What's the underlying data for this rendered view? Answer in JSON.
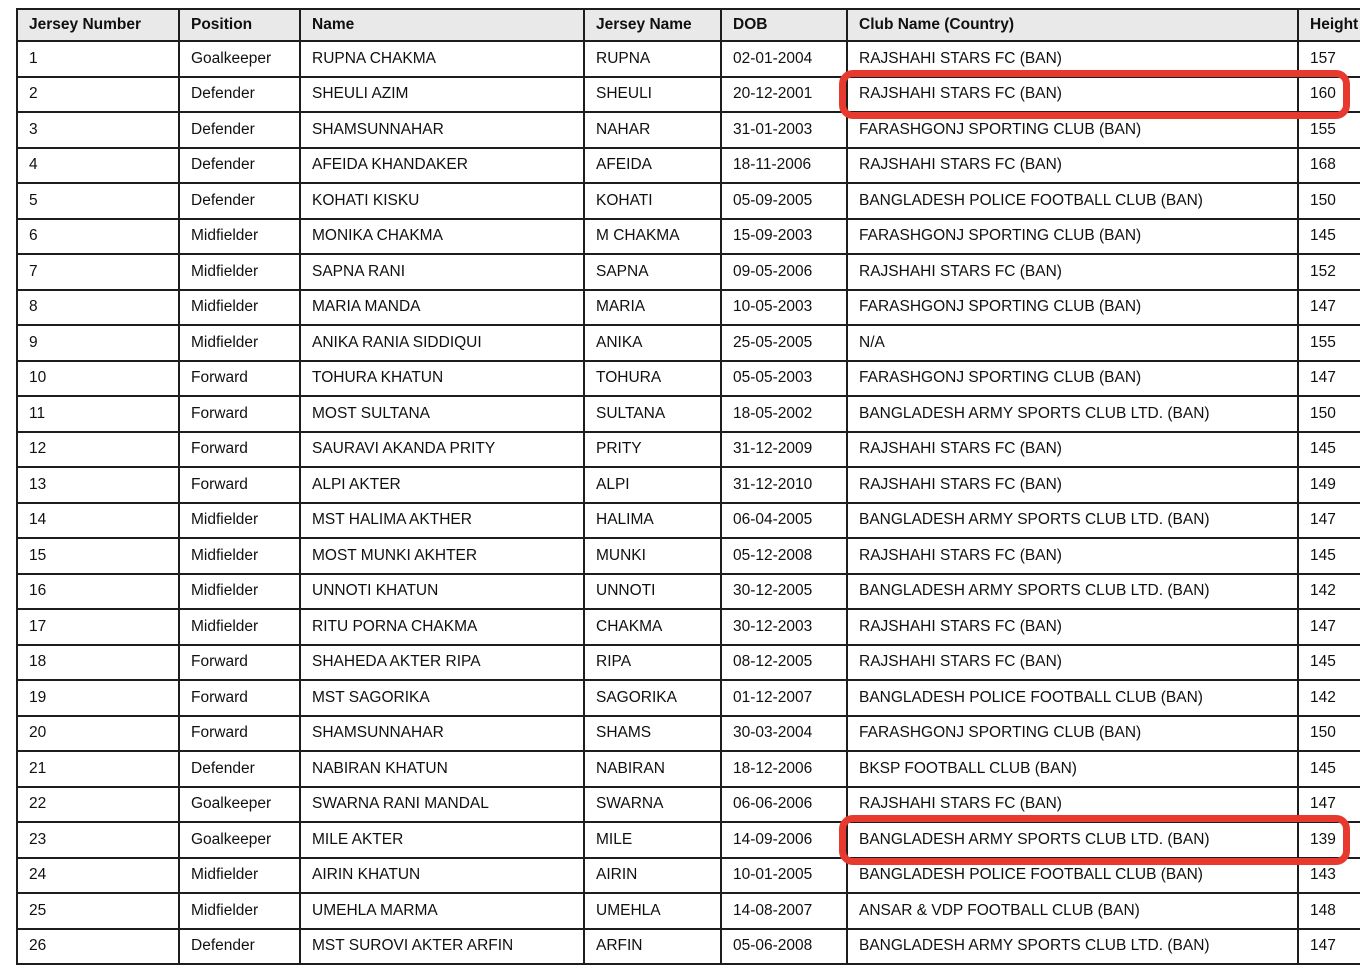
{
  "table": {
    "columns": [
      "Jersey Number",
      "Position",
      "Name",
      "Jersey Name",
      "DOB",
      "Club Name (Country)",
      "Height"
    ],
    "rows": [
      [
        "1",
        "Goalkeeper",
        "RUPNA CHAKMA",
        "RUPNA",
        "02-01-2004",
        "RAJSHAHI STARS FC (BAN)",
        "157"
      ],
      [
        "2",
        "Defender",
        "SHEULI AZIM",
        "SHEULI",
        "20-12-2001",
        "RAJSHAHI STARS FC (BAN)",
        "160"
      ],
      [
        "3",
        "Defender",
        "SHAMSUNNAHAR",
        "NAHAR",
        "31-01-2003",
        "FARASHGONJ SPORTING CLUB (BAN)",
        "155"
      ],
      [
        "4",
        "Defender",
        "AFEIDA KHANDAKER",
        "AFEIDA",
        "18-11-2006",
        "RAJSHAHI STARS FC (BAN)",
        "168"
      ],
      [
        "5",
        "Defender",
        "KOHATI KISKU",
        "KOHATI",
        "05-09-2005",
        "BANGLADESH POLICE FOOTBALL CLUB (BAN)",
        "150"
      ],
      [
        "6",
        "Midfielder",
        "MONIKA CHAKMA",
        "M CHAKMA",
        "15-09-2003",
        "FARASHGONJ SPORTING CLUB (BAN)",
        "145"
      ],
      [
        "7",
        "Midfielder",
        "SAPNA RANI",
        "SAPNA",
        "09-05-2006",
        "RAJSHAHI STARS FC (BAN)",
        "152"
      ],
      [
        "8",
        "Midfielder",
        "MARIA MANDA",
        "MARIA",
        "10-05-2003",
        "FARASHGONJ SPORTING CLUB (BAN)",
        "147"
      ],
      [
        "9",
        "Midfielder",
        "ANIKA RANIA SIDDIQUI",
        "ANIKA",
        "25-05-2005",
        "N/A",
        "155"
      ],
      [
        "10",
        "Forward",
        "TOHURA KHATUN",
        "TOHURA",
        "05-05-2003",
        "FARASHGONJ SPORTING CLUB (BAN)",
        "147"
      ],
      [
        "11",
        "Forward",
        "MOST SULTANA",
        "SULTANA",
        "18-05-2002",
        "BANGLADESH ARMY SPORTS CLUB LTD. (BAN)",
        "150"
      ],
      [
        "12",
        "Forward",
        "SAURAVI AKANDA PRITY",
        "PRITY",
        "31-12-2009",
        "RAJSHAHI STARS FC (BAN)",
        "145"
      ],
      [
        "13",
        "Forward",
        "ALPI AKTER",
        "ALPI",
        "31-12-2010",
        "RAJSHAHI STARS FC (BAN)",
        "149"
      ],
      [
        "14",
        "Midfielder",
        "MST HALIMA AKTHER",
        "HALIMA",
        "06-04-2005",
        "BANGLADESH ARMY SPORTS CLUB LTD. (BAN)",
        "147"
      ],
      [
        "15",
        "Midfielder",
        "MOST MUNKI AKHTER",
        "MUNKI",
        "05-12-2008",
        "RAJSHAHI STARS FC (BAN)",
        "145"
      ],
      [
        "16",
        "Midfielder",
        "UNNOTI KHATUN",
        "UNNOTI",
        "30-12-2005",
        "BANGLADESH ARMY SPORTS CLUB LTD. (BAN)",
        "142"
      ],
      [
        "17",
        "Midfielder",
        "RITU PORNA CHAKMA",
        "CHAKMA",
        "30-12-2003",
        "RAJSHAHI STARS FC (BAN)",
        "147"
      ],
      [
        "18",
        "Forward",
        "SHAHEDA AKTER RIPA",
        "RIPA",
        "08-12-2005",
        "RAJSHAHI STARS FC (BAN)",
        "145"
      ],
      [
        "19",
        "Forward",
        "MST SAGORIKA",
        "SAGORIKA",
        "01-12-2007",
        "BANGLADESH POLICE FOOTBALL CLUB (BAN)",
        "142"
      ],
      [
        "20",
        "Forward",
        "SHAMSUNNAHAR",
        "SHAMS",
        "30-03-2004",
        "FARASHGONJ SPORTING CLUB (BAN)",
        "150"
      ],
      [
        "21",
        "Defender",
        "NABIRAN KHATUN",
        "NABIRAN",
        "18-12-2006",
        "BKSP FOOTBALL CLUB (BAN)",
        "145"
      ],
      [
        "22",
        "Goalkeeper",
        "SWARNA RANI MANDAL",
        "SWARNA",
        "06-06-2006",
        "RAJSHAHI STARS FC (BAN)",
        "147"
      ],
      [
        "23",
        "Goalkeeper",
        "MILE AKTER",
        "MILE",
        "14-09-2006",
        "BANGLADESH ARMY SPORTS CLUB LTD. (BAN)",
        "139"
      ],
      [
        "24",
        "Midfielder",
        "AIRIN KHATUN",
        "AIRIN",
        "10-01-2005",
        "BANGLADESH POLICE FOOTBALL CLUB (BAN)",
        "143"
      ],
      [
        "25",
        "Midfielder",
        "UMEHLA MARMA",
        "UMEHLA",
        "14-08-2007",
        "ANSAR & VDP FOOTBALL CLUB (BAN)",
        "148"
      ],
      [
        "26",
        "Defender",
        "MST SUROVI AKTER ARFIN",
        "ARFIN",
        "05-06-2008",
        "BANGLADESH ARMY SPORTS CLUB LTD. (BAN)",
        "147"
      ]
    ]
  },
  "highlights": [
    {
      "row": 2,
      "highlighted_text": "RAJSHAHI STARS FC (BAN)",
      "highlighted_height": "160"
    },
    {
      "row": 23,
      "highlighted_text": "BANGLADESH ARMY SPORTS CLUB LTD. (BAN)",
      "highlighted_height": "139"
    }
  ],
  "colors": {
    "highlight": "#e8392f",
    "header_bg": "#e9e9e9",
    "grid_line": "#1d1d1d"
  }
}
